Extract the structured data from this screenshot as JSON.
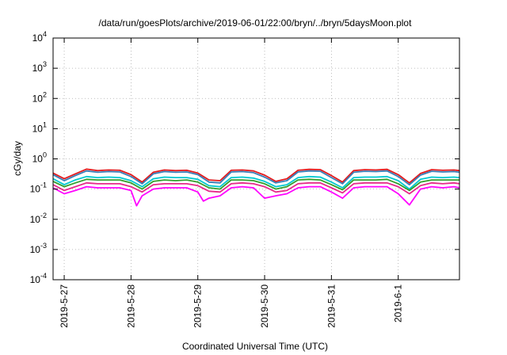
{
  "chart_data": {
    "type": "line",
    "title": "/data/run/goesPlots/archive/2019-06-01/22:00/bryn/../bryn/5daysMoon.plot",
    "xlabel": "Coordinated Universal Time (UTC)",
    "ylabel": "cGy/day",
    "yscale": "log",
    "ylim": [
      0.0001,
      10000
    ],
    "xlim": [
      "2019-05-26T20:00",
      "2019-06-01T22:00"
    ],
    "grid": true,
    "y_tick_exponents": [
      "4",
      "3",
      "2",
      "1",
      "0",
      "-1",
      "-2",
      "-3",
      "-4"
    ],
    "x_ticks": [
      {
        "label": "2019-5-27",
        "x": "2019-05-27T00:00"
      },
      {
        "label": "2019-5-28",
        "x": "2019-05-28T00:00"
      },
      {
        "label": "2019-5-29",
        "x": "2019-05-29T00:00"
      },
      {
        "label": "2019-5-30",
        "x": "2019-05-30T00:00"
      },
      {
        "label": "2019-5-31",
        "x": "2019-05-31T00:00"
      },
      {
        "label": "2019-6-1",
        "x": "2019-06-01T00:00"
      }
    ],
    "series": [
      {
        "color": "#e41a1c",
        "x": [
          "2019-05-26T20:00",
          "2019-05-27T00:00",
          "2019-05-27T04:00",
          "2019-05-27T08:00",
          "2019-05-27T12:00",
          "2019-05-27T16:00",
          "2019-05-27T20:00",
          "2019-05-28T00:00",
          "2019-05-28T04:00",
          "2019-05-28T08:00",
          "2019-05-28T12:00",
          "2019-05-28T16:00",
          "2019-05-28T20:00",
          "2019-05-29T00:00",
          "2019-05-29T04:00",
          "2019-05-29T08:00",
          "2019-05-29T12:00",
          "2019-05-29T16:00",
          "2019-05-29T20:00",
          "2019-05-30T00:00",
          "2019-05-30T04:00",
          "2019-05-30T08:00",
          "2019-05-30T12:00",
          "2019-05-30T16:00",
          "2019-05-30T20:00",
          "2019-05-31T00:00",
          "2019-05-31T04:00",
          "2019-05-31T08:00",
          "2019-05-31T12:00",
          "2019-05-31T16:00",
          "2019-05-31T20:00",
          "2019-06-01T00:00",
          "2019-06-01T04:00",
          "2019-06-01T08:00",
          "2019-06-01T12:00",
          "2019-06-01T16:00",
          "2019-06-01T20:00",
          "2019-06-01T22:00"
        ],
        "values": [
          0.34,
          0.22,
          0.32,
          0.46,
          0.41,
          0.43,
          0.42,
          0.3,
          0.17,
          0.36,
          0.43,
          0.41,
          0.42,
          0.34,
          0.2,
          0.19,
          0.42,
          0.43,
          0.4,
          0.29,
          0.18,
          0.22,
          0.42,
          0.45,
          0.44,
          0.28,
          0.17,
          0.41,
          0.44,
          0.43,
          0.45,
          0.3,
          0.16,
          0.33,
          0.44,
          0.42,
          0.43,
          0.41
        ]
      },
      {
        "color": "#377eb8",
        "x": [
          "2019-05-26T20:00",
          "2019-05-27T00:00",
          "2019-05-27T04:00",
          "2019-05-27T08:00",
          "2019-05-27T12:00",
          "2019-05-27T16:00",
          "2019-05-27T20:00",
          "2019-05-28T00:00",
          "2019-05-28T04:00",
          "2019-05-28T08:00",
          "2019-05-28T12:00",
          "2019-05-28T16:00",
          "2019-05-28T20:00",
          "2019-05-29T00:00",
          "2019-05-29T04:00",
          "2019-05-29T08:00",
          "2019-05-29T12:00",
          "2019-05-29T16:00",
          "2019-05-29T20:00",
          "2019-05-30T00:00",
          "2019-05-30T04:00",
          "2019-05-30T08:00",
          "2019-05-30T12:00",
          "2019-05-30T16:00",
          "2019-05-30T20:00",
          "2019-05-31T00:00",
          "2019-05-31T04:00",
          "2019-05-31T08:00",
          "2019-05-31T12:00",
          "2019-05-31T16:00",
          "2019-05-31T20:00",
          "2019-06-01T00:00",
          "2019-06-01T04:00",
          "2019-06-01T08:00",
          "2019-06-01T12:00",
          "2019-06-01T16:00",
          "2019-06-01T20:00",
          "2019-06-01T22:00"
        ],
        "values": [
          0.3,
          0.19,
          0.28,
          0.4,
          0.36,
          0.38,
          0.37,
          0.26,
          0.15,
          0.32,
          0.38,
          0.36,
          0.37,
          0.3,
          0.17,
          0.16,
          0.37,
          0.38,
          0.35,
          0.25,
          0.16,
          0.19,
          0.37,
          0.4,
          0.39,
          0.24,
          0.15,
          0.36,
          0.39,
          0.38,
          0.4,
          0.26,
          0.14,
          0.29,
          0.39,
          0.37,
          0.38,
          0.36
        ]
      },
      {
        "color": "#00c8d0",
        "x": [
          "2019-05-26T20:00",
          "2019-05-27T00:00",
          "2019-05-27T04:00",
          "2019-05-27T08:00",
          "2019-05-27T12:00",
          "2019-05-27T16:00",
          "2019-05-27T20:00",
          "2019-05-28T00:00",
          "2019-05-28T04:00",
          "2019-05-28T08:00",
          "2019-05-28T12:00",
          "2019-05-28T16:00",
          "2019-05-28T20:00",
          "2019-05-29T00:00",
          "2019-05-29T04:00",
          "2019-05-29T08:00",
          "2019-05-29T12:00",
          "2019-05-29T16:00",
          "2019-05-29T20:00",
          "2019-05-30T00:00",
          "2019-05-30T04:00",
          "2019-05-30T08:00",
          "2019-05-30T12:00",
          "2019-05-30T16:00",
          "2019-05-30T20:00",
          "2019-05-31T00:00",
          "2019-05-31T04:00",
          "2019-05-31T08:00",
          "2019-05-31T12:00",
          "2019-05-31T16:00",
          "2019-05-31T20:00",
          "2019-06-01T00:00",
          "2019-06-01T04:00",
          "2019-06-01T08:00",
          "2019-06-01T12:00",
          "2019-06-01T16:00",
          "2019-06-01T20:00",
          "2019-06-01T22:00"
        ],
        "values": [
          0.22,
          0.14,
          0.2,
          0.26,
          0.24,
          0.25,
          0.24,
          0.19,
          0.12,
          0.22,
          0.25,
          0.24,
          0.24,
          0.21,
          0.13,
          0.12,
          0.24,
          0.25,
          0.23,
          0.18,
          0.12,
          0.14,
          0.24,
          0.26,
          0.25,
          0.17,
          0.11,
          0.24,
          0.25,
          0.25,
          0.26,
          0.19,
          0.1,
          0.21,
          0.25,
          0.24,
          0.25,
          0.24
        ]
      },
      {
        "color": "#33a02c",
        "x": [
          "2019-05-26T20:00",
          "2019-05-27T00:00",
          "2019-05-27T04:00",
          "2019-05-27T08:00",
          "2019-05-27T12:00",
          "2019-05-27T16:00",
          "2019-05-27T20:00",
          "2019-05-28T00:00",
          "2019-05-28T04:00",
          "2019-05-28T08:00",
          "2019-05-28T12:00",
          "2019-05-28T16:00",
          "2019-05-28T20:00",
          "2019-05-29T00:00",
          "2019-05-29T04:00",
          "2019-05-29T08:00",
          "2019-05-29T12:00",
          "2019-05-29T16:00",
          "2019-05-29T20:00",
          "2019-05-30T00:00",
          "2019-05-30T04:00",
          "2019-05-30T08:00",
          "2019-05-30T12:00",
          "2019-05-30T16:00",
          "2019-05-30T20:00",
          "2019-05-31T00:00",
          "2019-05-31T04:00",
          "2019-05-31T08:00",
          "2019-05-31T12:00",
          "2019-05-31T16:00",
          "2019-05-31T20:00",
          "2019-06-01T00:00",
          "2019-06-01T04:00",
          "2019-06-01T08:00",
          "2019-06-01T12:00",
          "2019-06-01T16:00",
          "2019-06-01T20:00",
          "2019-06-01T22:00"
        ],
        "values": [
          0.18,
          0.12,
          0.16,
          0.21,
          0.2,
          0.2,
          0.2,
          0.16,
          0.1,
          0.18,
          0.2,
          0.19,
          0.2,
          0.17,
          0.11,
          0.1,
          0.2,
          0.2,
          0.19,
          0.15,
          0.1,
          0.12,
          0.2,
          0.21,
          0.2,
          0.14,
          0.095,
          0.2,
          0.2,
          0.2,
          0.21,
          0.15,
          0.09,
          0.17,
          0.2,
          0.2,
          0.2,
          0.2
        ]
      },
      {
        "color": "#e7298a",
        "x": [
          "2019-05-26T20:00",
          "2019-05-27T00:00",
          "2019-05-27T04:00",
          "2019-05-27T08:00",
          "2019-05-27T12:00",
          "2019-05-27T16:00",
          "2019-05-27T20:00",
          "2019-05-28T00:00",
          "2019-05-28T04:00",
          "2019-05-28T08:00",
          "2019-05-28T12:00",
          "2019-05-28T16:00",
          "2019-05-28T20:00",
          "2019-05-29T00:00",
          "2019-05-29T04:00",
          "2019-05-29T08:00",
          "2019-05-29T12:00",
          "2019-05-29T16:00",
          "2019-05-29T20:00",
          "2019-05-30T00:00",
          "2019-05-30T04:00",
          "2019-05-30T08:00",
          "2019-05-30T12:00",
          "2019-05-30T16:00",
          "2019-05-30T20:00",
          "2019-05-31T00:00",
          "2019-05-31T04:00",
          "2019-05-31T08:00",
          "2019-05-31T12:00",
          "2019-05-31T16:00",
          "2019-05-31T20:00",
          "2019-06-01T00:00",
          "2019-06-01T04:00",
          "2019-06-01T08:00",
          "2019-06-01T12:00",
          "2019-06-01T16:00",
          "2019-06-01T20:00",
          "2019-06-01T22:00"
        ],
        "values": [
          0.14,
          0.09,
          0.12,
          0.16,
          0.15,
          0.15,
          0.15,
          0.12,
          0.08,
          0.14,
          0.15,
          0.15,
          0.15,
          0.13,
          0.085,
          0.08,
          0.15,
          0.16,
          0.15,
          0.12,
          0.08,
          0.09,
          0.15,
          0.16,
          0.16,
          0.11,
          0.075,
          0.15,
          0.16,
          0.16,
          0.16,
          0.12,
          0.07,
          0.13,
          0.16,
          0.15,
          0.16,
          0.15
        ]
      },
      {
        "color": "#ff00ff",
        "x": [
          "2019-05-26T20:00",
          "2019-05-27T00:00",
          "2019-05-27T04:00",
          "2019-05-27T08:00",
          "2019-05-27T12:00",
          "2019-05-27T16:00",
          "2019-05-27T20:00",
          "2019-05-28T00:00",
          "2019-05-28T02:00",
          "2019-05-28T04:00",
          "2019-05-28T08:00",
          "2019-05-28T12:00",
          "2019-05-28T16:00",
          "2019-05-28T20:00",
          "2019-05-29T00:00",
          "2019-05-29T02:00",
          "2019-05-29T04:00",
          "2019-05-29T08:00",
          "2019-05-29T12:00",
          "2019-05-29T16:00",
          "2019-05-29T20:00",
          "2019-05-30T00:00",
          "2019-05-30T04:00",
          "2019-05-30T08:00",
          "2019-05-30T12:00",
          "2019-05-30T16:00",
          "2019-05-30T20:00",
          "2019-05-31T00:00",
          "2019-05-31T04:00",
          "2019-05-31T08:00",
          "2019-05-31T12:00",
          "2019-05-31T16:00",
          "2019-05-31T20:00",
          "2019-06-01T00:00",
          "2019-06-01T04:00",
          "2019-06-01T08:00",
          "2019-06-01T12:00",
          "2019-06-01T16:00",
          "2019-06-01T20:00",
          "2019-06-01T22:00"
        ],
        "values": [
          0.11,
          0.07,
          0.09,
          0.12,
          0.11,
          0.11,
          0.11,
          0.09,
          0.028,
          0.06,
          0.1,
          0.11,
          0.11,
          0.11,
          0.08,
          0.04,
          0.05,
          0.06,
          0.11,
          0.12,
          0.11,
          0.05,
          0.06,
          0.07,
          0.11,
          0.12,
          0.12,
          0.08,
          0.05,
          0.11,
          0.12,
          0.12,
          0.12,
          0.07,
          0.03,
          0.1,
          0.12,
          0.11,
          0.12,
          0.11
        ]
      }
    ]
  }
}
